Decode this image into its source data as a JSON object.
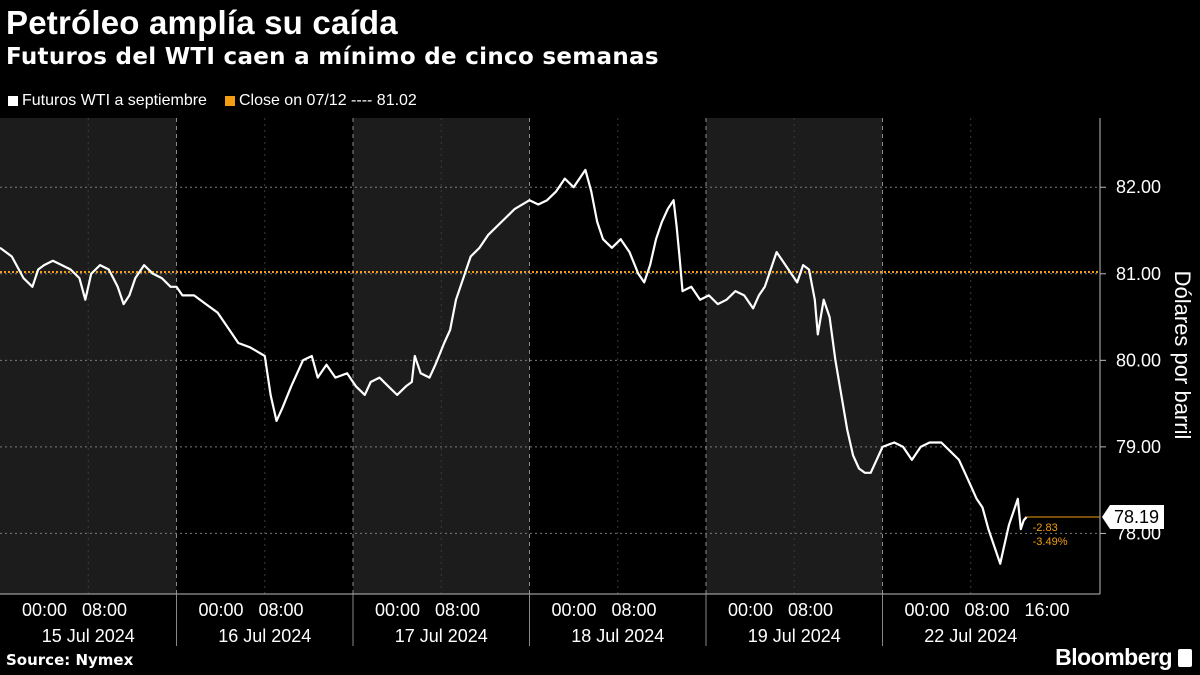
{
  "header": {
    "title": "Petróleo amplía su caída",
    "subtitle": "Futuros del WTI caen a mínimo de cinco semanas"
  },
  "legend": {
    "series_label": "Futuros WTI a septiembre",
    "close_label": "Close on 07/12 ---- 81.02",
    "series_color": "#ffffff",
    "close_color": "#f29d12"
  },
  "footer": {
    "source": "Source: Nymex",
    "brand": "Bloomberg"
  },
  "chart_data": {
    "type": "line",
    "title": "Petróleo amplía su caída",
    "subtitle": "Futuros del WTI caen a mínimo de cinco semanas",
    "xlabel": "",
    "ylabel": "Dólares por barril",
    "ylim": [
      77.3,
      82.8
    ],
    "yticks": [
      78.0,
      79.0,
      80.0,
      81.0,
      82.0
    ],
    "ytick_labels": [
      "78.00",
      "79.00",
      "80.00",
      "81.00",
      "82.00"
    ],
    "days": [
      {
        "date": "15 Jul 2024",
        "ticks": [
          "00:00",
          "08:00"
        ]
      },
      {
        "date": "16 Jul 2024",
        "ticks": [
          "00:00",
          "08:00"
        ]
      },
      {
        "date": "17 Jul 2024",
        "ticks": [
          "00:00",
          "08:00"
        ]
      },
      {
        "date": "18 Jul 2024",
        "ticks": [
          "00:00",
          "08:00"
        ]
      },
      {
        "date": "19 Jul 2024",
        "ticks": [
          "00:00",
          "08:00"
        ]
      },
      {
        "date": "22 Jul 2024",
        "ticks": [
          "00:00",
          "08:00",
          "16:00"
        ]
      }
    ],
    "grid": true,
    "shaded_sessions": true,
    "reference_line": {
      "label": "Close on 07/12",
      "value": 81.02
    },
    "last_value": {
      "value": 78.19,
      "label": "78.19",
      "change": "-2.83",
      "change_pct": "-3.49%"
    },
    "series": [
      {
        "name": "Futuros WTI a septiembre",
        "points": [
          [
            0.0,
            81.3
          ],
          [
            0.2,
            81.2
          ],
          [
            0.4,
            80.95
          ],
          [
            0.55,
            80.85
          ],
          [
            0.65,
            81.05
          ],
          [
            0.75,
            81.1
          ],
          [
            0.9,
            81.15
          ],
          [
            1.05,
            81.1
          ],
          [
            1.2,
            81.05
          ],
          [
            1.35,
            80.95
          ],
          [
            1.45,
            80.7
          ],
          [
            1.55,
            81.0
          ],
          [
            1.7,
            81.1
          ],
          [
            1.85,
            81.05
          ],
          [
            2.0,
            80.85
          ],
          [
            2.1,
            80.65
          ],
          [
            2.2,
            80.75
          ],
          [
            2.3,
            80.95
          ],
          [
            2.45,
            81.1
          ],
          [
            2.6,
            81.0
          ],
          [
            2.75,
            80.95
          ],
          [
            2.9,
            80.85
          ],
          [
            3.0,
            80.85
          ],
          [
            3.1,
            80.75
          ],
          [
            3.3,
            80.75
          ],
          [
            3.5,
            80.65
          ],
          [
            3.7,
            80.55
          ],
          [
            3.9,
            80.35
          ],
          [
            4.05,
            80.2
          ],
          [
            4.25,
            80.15
          ],
          [
            4.5,
            80.05
          ],
          [
            4.6,
            79.6
          ],
          [
            4.7,
            79.3
          ],
          [
            4.8,
            79.45
          ],
          [
            4.95,
            79.7
          ],
          [
            5.05,
            79.85
          ],
          [
            5.15,
            80.0
          ],
          [
            5.3,
            80.05
          ],
          [
            5.4,
            79.8
          ],
          [
            5.55,
            79.95
          ],
          [
            5.7,
            79.8
          ],
          [
            5.9,
            79.85
          ],
          [
            6.05,
            79.7
          ],
          [
            6.2,
            79.6
          ],
          [
            6.3,
            79.75
          ],
          [
            6.45,
            79.8
          ],
          [
            6.6,
            79.7
          ],
          [
            6.75,
            79.6
          ],
          [
            6.9,
            79.7
          ],
          [
            7.0,
            79.75
          ],
          [
            7.05,
            80.05
          ],
          [
            7.15,
            79.85
          ],
          [
            7.3,
            79.8
          ],
          [
            7.4,
            79.95
          ],
          [
            7.55,
            80.2
          ],
          [
            7.65,
            80.35
          ],
          [
            7.75,
            80.7
          ],
          [
            7.9,
            81.0
          ],
          [
            8.0,
            81.2
          ],
          [
            8.15,
            81.3
          ],
          [
            8.3,
            81.45
          ],
          [
            8.45,
            81.55
          ],
          [
            8.6,
            81.65
          ],
          [
            8.75,
            81.75
          ],
          [
            9.0,
            81.85
          ],
          [
            9.15,
            81.8
          ],
          [
            9.3,
            81.85
          ],
          [
            9.45,
            81.95
          ],
          [
            9.6,
            82.1
          ],
          [
            9.75,
            82.0
          ],
          [
            9.95,
            82.2
          ],
          [
            10.05,
            81.95
          ],
          [
            10.15,
            81.6
          ],
          [
            10.25,
            81.4
          ],
          [
            10.4,
            81.3
          ],
          [
            10.55,
            81.4
          ],
          [
            10.7,
            81.25
          ],
          [
            10.85,
            81.0
          ],
          [
            10.95,
            80.9
          ],
          [
            11.05,
            81.1
          ],
          [
            11.15,
            81.4
          ],
          [
            11.25,
            81.6
          ],
          [
            11.35,
            81.75
          ],
          [
            11.45,
            81.85
          ],
          [
            11.5,
            81.55
          ],
          [
            11.55,
            81.2
          ],
          [
            11.6,
            80.8
          ],
          [
            11.75,
            80.85
          ],
          [
            11.9,
            80.7
          ],
          [
            12.05,
            80.75
          ],
          [
            12.2,
            80.65
          ],
          [
            12.35,
            80.7
          ],
          [
            12.5,
            80.8
          ],
          [
            12.65,
            80.75
          ],
          [
            12.8,
            80.6
          ],
          [
            12.9,
            80.75
          ],
          [
            13.0,
            80.85
          ],
          [
            13.1,
            81.05
          ],
          [
            13.2,
            81.25
          ],
          [
            13.3,
            81.15
          ],
          [
            13.45,
            81.0
          ],
          [
            13.55,
            80.9
          ],
          [
            13.65,
            81.1
          ],
          [
            13.75,
            81.05
          ],
          [
            13.85,
            80.7
          ],
          [
            13.9,
            80.3
          ],
          [
            14.0,
            80.7
          ],
          [
            14.1,
            80.5
          ],
          [
            14.2,
            80.0
          ],
          [
            14.3,
            79.6
          ],
          [
            14.4,
            79.2
          ],
          [
            14.5,
            78.9
          ],
          [
            14.6,
            78.75
          ],
          [
            14.7,
            78.7
          ],
          [
            14.8,
            78.7
          ],
          [
            14.9,
            78.85
          ],
          [
            15.0,
            79.0
          ],
          [
            15.2,
            79.05
          ],
          [
            15.35,
            79.0
          ],
          [
            15.5,
            78.85
          ],
          [
            15.65,
            79.0
          ],
          [
            15.8,
            79.05
          ],
          [
            16.0,
            79.05
          ],
          [
            16.15,
            78.95
          ],
          [
            16.3,
            78.85
          ],
          [
            16.4,
            78.7
          ],
          [
            16.5,
            78.55
          ],
          [
            16.6,
            78.4
          ],
          [
            16.7,
            78.3
          ],
          [
            16.8,
            78.05
          ],
          [
            16.9,
            77.85
          ],
          [
            17.0,
            77.65
          ],
          [
            17.05,
            77.8
          ],
          [
            17.15,
            78.1
          ],
          [
            17.25,
            78.3
          ],
          [
            17.3,
            78.4
          ],
          [
            17.35,
            78.05
          ],
          [
            17.4,
            78.15
          ],
          [
            17.45,
            78.19
          ]
        ]
      }
    ]
  }
}
